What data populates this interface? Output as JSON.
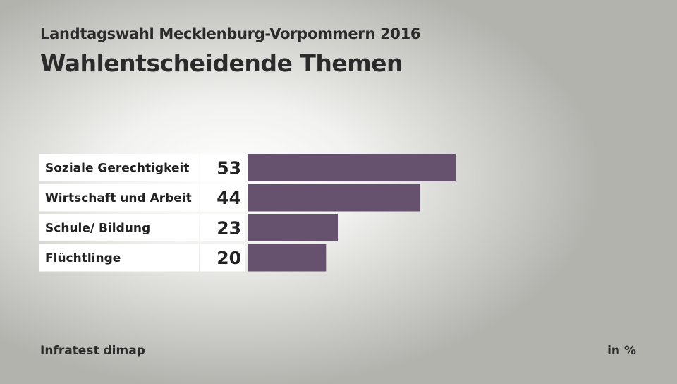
{
  "header": {
    "subtitle": "Landtagswahl Mecklenburg-Vorpommern 2016",
    "title": "Wahlentscheidende Themen"
  },
  "footer": {
    "source": "Infratest dimap",
    "unit": "in %"
  },
  "colors": {
    "bar": "#66516f",
    "label_bg": "#ffffff"
  },
  "chart_data": {
    "type": "bar",
    "orientation": "horizontal",
    "categories": [
      "Soziale Gerechtigkeit",
      "Wirtschaft und Arbeit",
      "Schule/ Bildung",
      "Flüchtlinge"
    ],
    "values": [
      53,
      44,
      23,
      20
    ],
    "value_labels": [
      "53",
      "44",
      "23",
      "20"
    ],
    "xlim": [
      0,
      100
    ],
    "grid": false,
    "legend": "none"
  }
}
